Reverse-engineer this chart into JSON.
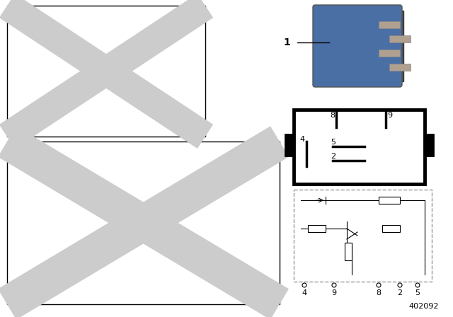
{
  "bg_color": "#ffffff",
  "placeholder_color": "#cccccc",
  "text_color": "#000000",
  "label_1": "1",
  "pin_labels_pinout": [
    "8",
    "9",
    "4",
    "5",
    "2"
  ],
  "pin_labels_schematic": [
    "4",
    "9",
    "8",
    "2",
    "5"
  ],
  "diagram_number": "402092",
  "relay_box_border": "#000000",
  "dashed_box_border": "#888888"
}
